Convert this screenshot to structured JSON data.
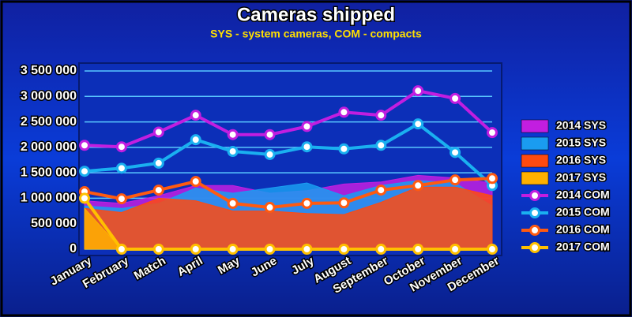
{
  "chart_data": {
    "type": "line",
    "title": "Cameras shipped",
    "subtitle": "SYS - system cameras, COM - compacts",
    "categories": [
      "January",
      "February",
      "Match",
      "April",
      "May",
      "June",
      "July",
      "August",
      "September",
      "October",
      "November",
      "December"
    ],
    "ylim": [
      0,
      3500000
    ],
    "yticks": [
      {
        "value": 0,
        "label": "0"
      },
      {
        "value": 500000,
        "label": "500 000"
      },
      {
        "value": 1000000,
        "label": "1 000 000"
      },
      {
        "value": 1500000,
        "label": "1 500 000"
      },
      {
        "value": 2000000,
        "label": "2 000 000"
      },
      {
        "value": 2500000,
        "label": "2 500 000"
      },
      {
        "value": 3000000,
        "label": "3 000 000"
      },
      {
        "value": 3500000,
        "label": "3 500 000"
      }
    ],
    "grid": true,
    "legend": "right",
    "series": [
      {
        "name": "2014 SYS",
        "type": "area",
        "color": "#c21ee0",
        "values": [
          950000,
          900000,
          1050000,
          1250000,
          1250000,
          1100000,
          1150000,
          1280000,
          1320000,
          1450000,
          1400000,
          1300000
        ]
      },
      {
        "name": "2015 SYS",
        "type": "area",
        "color": "#1a9cf0",
        "values": [
          850000,
          800000,
          900000,
          1200000,
          1100000,
          1200000,
          1300000,
          1050000,
          1250000,
          1350000,
          1300000,
          850000
        ]
      },
      {
        "name": "2016 SYS",
        "type": "area",
        "color": "#ff4a10",
        "values": [
          800000,
          720000,
          1000000,
          950000,
          750000,
          750000,
          700000,
          680000,
          920000,
          1220000,
          1220000,
          1050000
        ]
      },
      {
        "name": "2017 SYS",
        "type": "area",
        "color": "#ffb000",
        "values": [
          800000,
          0,
          0,
          0,
          0,
          0,
          0,
          0,
          0,
          0,
          0,
          0
        ]
      },
      {
        "name": "2014 COM",
        "type": "line",
        "color": "#c21ee0",
        "values": [
          2040000,
          2010000,
          2300000,
          2630000,
          2250000,
          2250000,
          2410000,
          2690000,
          2630000,
          3110000,
          2960000,
          2290000
        ]
      },
      {
        "name": "2015 COM",
        "type": "line",
        "color": "#1ab0f0",
        "values": [
          1530000,
          1590000,
          1690000,
          2150000,
          1920000,
          1860000,
          2010000,
          1970000,
          2040000,
          2460000,
          1900000,
          1250000
        ]
      },
      {
        "name": "2016 COM",
        "type": "line",
        "color": "#ff5a10",
        "values": [
          1130000,
          990000,
          1160000,
          1330000,
          900000,
          820000,
          900000,
          910000,
          1160000,
          1250000,
          1360000,
          1390000
        ]
      },
      {
        "name": "2017 COM",
        "type": "line",
        "color": "#ffc000",
        "values": [
          1000000,
          0,
          0,
          0,
          0,
          0,
          0,
          0,
          0,
          0,
          0,
          0
        ]
      }
    ]
  }
}
